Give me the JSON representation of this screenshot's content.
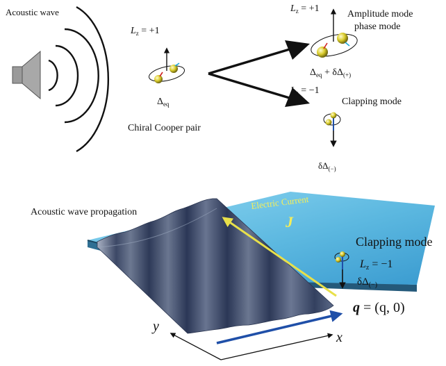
{
  "top": {
    "acoustic_wave_label": "Acoustic wave",
    "chiral_pair": {
      "lz": "L",
      "lz_sub": "z",
      "lz_value": " = +1",
      "delta_eq": "Δ",
      "delta_eq_sub": "eq",
      "caption": "Chiral Cooper pair"
    },
    "amplitude_mode": {
      "lz": "L",
      "lz_sub": "z",
      "lz_value": " = +1",
      "title_line1": "Amplitude mode",
      "title_line2": "phase mode",
      "delta": "Δ",
      "delta_sub": "eq",
      "delta_plus": " + δΔ",
      "delta_plus_sub": "(+)"
    },
    "clapping_mode": {
      "lz": "L",
      "lz_sub": "z",
      "lz_value": " = −1",
      "title": "Clapping mode",
      "delta": "δΔ",
      "delta_sub": "(−)"
    }
  },
  "bottom": {
    "propagation_label": "Acoustic wave propagation",
    "current_label": "Electric Current",
    "current_symbol": "J",
    "clapping_title": "Clapping mode",
    "lz": "L",
    "lz_sub": "z",
    "lz_value": " = −1",
    "delta": "δΔ",
    "delta_sub": "(−)",
    "q_symbol": "q",
    "q_value": " = (q, 0)",
    "x_axis": "x",
    "y_axis": "y"
  },
  "colors": {
    "slab_top": "#6cc4e6",
    "slab_edge": "#2f6f93",
    "wave": "#4a5878",
    "current_arrow": "#e8e04a",
    "q_arrow": "#1f4fa8",
    "electron": "#d9cc2a"
  }
}
